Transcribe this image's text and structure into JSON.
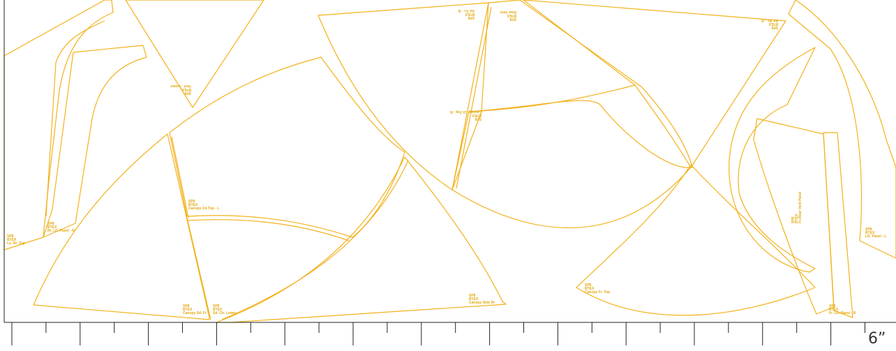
{
  "pieces": [
    {
      "id": "canopy-side-rr",
      "lines": [
        "SP8",
        "BTEX",
        "Canopy Side Rr"
      ]
    },
    {
      "id": "canopy-ctr-top-l",
      "lines": [
        "SP8",
        "BTEX",
        "Canopy Ctr.Top - L"
      ]
    },
    {
      "id": "canopy-sd-fr",
      "lines": [
        "SP8",
        "BTEX",
        "Canopy Sd. Fr."
      ]
    },
    {
      "id": "sd-ctr-lower",
      "lines": [
        "SP8",
        "BTEX",
        "Sd. Ctr. Lower"
      ]
    },
    {
      "id": "canopy-fr-top",
      "lines": [
        "SP8",
        "BTEX",
        "Canopy Fr. Top"
      ]
    },
    {
      "id": "fr-ld-panel-r",
      "lines": [
        "SP8",
        "BTEX",
        "Fr. LD. Panel - R"
      ]
    },
    {
      "id": "rr-ld-panel-r",
      "lines": [
        "SP8",
        "BTEX",
        "Rr. LD. Panel - R"
      ]
    },
    {
      "id": "ld-panel-l",
      "lines": [
        "SP8",
        "BTEX",
        "LD. Panel - L"
      ]
    },
    {
      "id": "fr-rear-vent-panel",
      "lines": [
        "SP8",
        "BTEX",
        "Fr./Rear Vent Panel"
      ]
    },
    {
      "id": "vent-lower",
      "lines": [
        "SP8",
        "BTEX",
        "Vent - Lower"
      ]
    },
    {
      "id": "rear-vent",
      "lines": [
        "SP8",
        "BTEX",
        "Rear Vent"
      ]
    },
    {
      "id": "canopy-ctr-top-r",
      "lines": [
        "SP8",
        "BTEX",
        "Canopy Ctr.Top - R"
      ]
    },
    {
      "id": "sd-fr-r",
      "lines": [
        "SP8",
        "BTEX",
        "Sd. Fr. - R"
      ]
    },
    {
      "id": "sd-rr-r",
      "lines": [
        "SP8",
        "BTEX",
        "Sd. Rr. - R"
      ]
    },
    {
      "id": "lo-rr-top",
      "lines": [
        "SP8",
        "BTEX",
        "Lo. Rr. Top"
      ]
    }
  ],
  "ruler": {
    "label": "6”",
    "tick_count": 26
  },
  "colors": {
    "pattern_line": "#f2b21c",
    "label_text": "#e3a80e",
    "ruler": "#222222"
  }
}
